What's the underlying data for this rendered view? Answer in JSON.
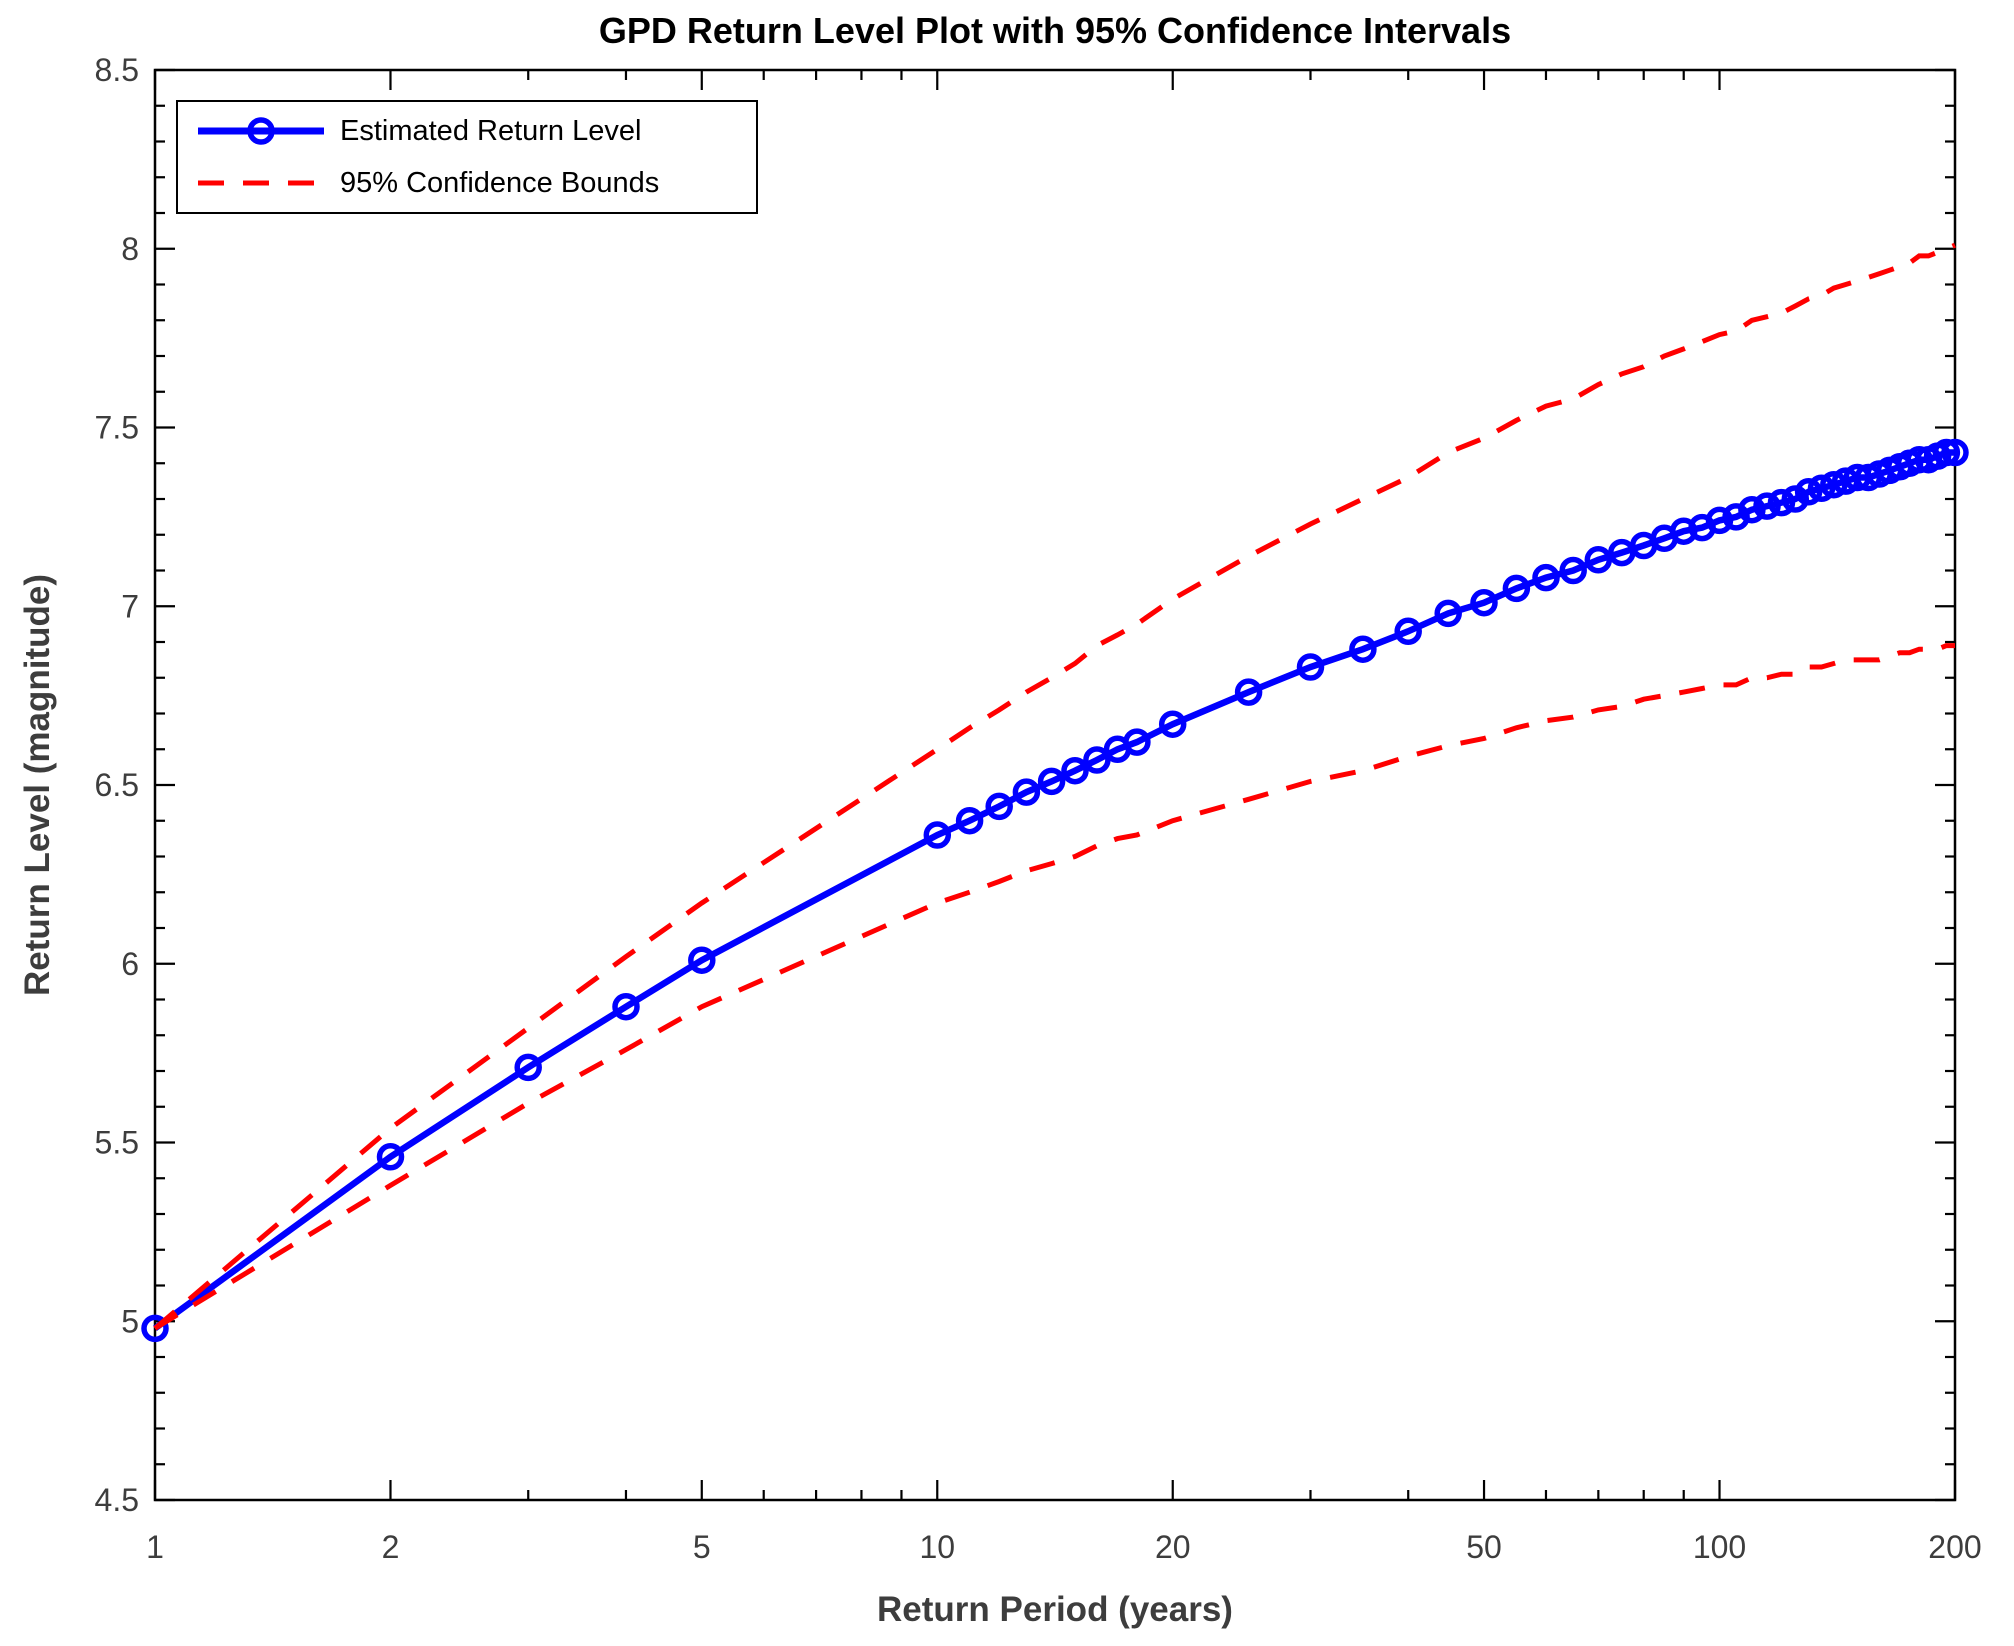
{
  "title": "GPD Return Level Plot with 95% Confidence Intervals",
  "legend": {
    "estimated_label": "Estimated Return Level",
    "bounds_label": "95% Confidence Bounds"
  },
  "colors": {
    "estimated_line": "#0000ff",
    "confidence_bounds": "#ff0000",
    "axis_frame": "#000000",
    "tick_label": "#3d3d3d"
  },
  "chart_data": {
    "type": "line",
    "title": "GPD Return Level Plot with 95% Confidence Intervals",
    "xlabel": "Return Period (years)",
    "ylabel": "Return Level (magnitude)",
    "x_scale": "log",
    "xlim": [
      1,
      200
    ],
    "ylim": [
      4.5,
      8.5
    ],
    "x_ticks": [
      1,
      2,
      5,
      10,
      20,
      50,
      100,
      200
    ],
    "x_minor_ticks": [
      3,
      4,
      6,
      7,
      8,
      9,
      30,
      40,
      60,
      70,
      80,
      90
    ],
    "y_ticks": [
      4.5,
      5,
      5.5,
      6,
      6.5,
      7,
      7.5,
      8,
      8.5
    ],
    "y_minor_step": 0.1,
    "grid": false,
    "legend_position": "top-left",
    "x": [
      1,
      2,
      3,
      4,
      5,
      10,
      11,
      12,
      13,
      14,
      15,
      16,
      17,
      18,
      20,
      25,
      30,
      35,
      40,
      45,
      50,
      55,
      60,
      65,
      70,
      75,
      80,
      85,
      90,
      95,
      100,
      105,
      110,
      115,
      120,
      125,
      130,
      135,
      140,
      145,
      150,
      155,
      160,
      165,
      170,
      175,
      180,
      185,
      190,
      195,
      200
    ],
    "series": [
      {
        "name": "Estimated Return Level",
        "style": "solid",
        "marker": "circle",
        "color": "#0000ff",
        "values": [
          4.98,
          5.46,
          5.71,
          5.88,
          6.01,
          6.36,
          6.4,
          6.44,
          6.48,
          6.51,
          6.54,
          6.57,
          6.6,
          6.62,
          6.67,
          6.76,
          6.83,
          6.88,
          6.93,
          6.98,
          7.01,
          7.05,
          7.08,
          7.1,
          7.13,
          7.15,
          7.17,
          7.19,
          7.21,
          7.22,
          7.24,
          7.25,
          7.27,
          7.28,
          7.29,
          7.3,
          7.32,
          7.33,
          7.34,
          7.35,
          7.36,
          7.36,
          7.37,
          7.38,
          7.39,
          7.4,
          7.41,
          7.41,
          7.42,
          7.43,
          7.43
        ]
      },
      {
        "name": "95% Confidence Bounds (upper)",
        "style": "dashed",
        "marker": "none",
        "color": "#ff0000",
        "values": [
          4.98,
          5.54,
          5.82,
          6.02,
          6.17,
          6.6,
          6.66,
          6.71,
          6.76,
          6.8,
          6.84,
          6.89,
          6.92,
          6.95,
          7.02,
          7.14,
          7.23,
          7.3,
          7.36,
          7.43,
          7.47,
          7.52,
          7.56,
          7.58,
          7.62,
          7.65,
          7.67,
          7.7,
          7.72,
          7.74,
          7.76,
          7.77,
          7.8,
          7.81,
          7.82,
          7.84,
          7.86,
          7.87,
          7.89,
          7.9,
          7.91,
          7.92,
          7.93,
          7.94,
          7.95,
          7.96,
          7.98,
          7.98,
          7.99,
          8.0,
          8.01
        ]
      },
      {
        "name": "95% Confidence Bounds (lower)",
        "style": "dashed",
        "marker": "none",
        "color": "#ff0000",
        "values": [
          4.98,
          5.38,
          5.61,
          5.76,
          5.88,
          6.17,
          6.2,
          6.23,
          6.26,
          6.28,
          6.3,
          6.33,
          6.35,
          6.36,
          6.4,
          6.46,
          6.51,
          6.54,
          6.58,
          6.61,
          6.63,
          6.66,
          6.68,
          6.69,
          6.71,
          6.72,
          6.74,
          6.75,
          6.76,
          6.77,
          6.78,
          6.78,
          6.8,
          6.8,
          6.81,
          6.81,
          6.83,
          6.83,
          6.84,
          6.85,
          6.85,
          6.85,
          6.85,
          6.86,
          6.87,
          6.87,
          6.88,
          6.88,
          6.88,
          6.89,
          6.89
        ]
      }
    ]
  }
}
